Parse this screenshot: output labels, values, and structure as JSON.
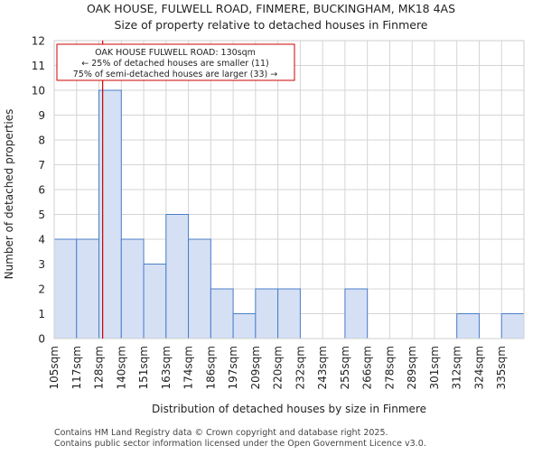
{
  "chart_data": {
    "type": "bar",
    "title": "OAK HOUSE, FULWELL ROAD, FINMERE, BUCKINGHAM, MK18 4AS",
    "subtitle": "Size of property relative to detached houses in Finmere",
    "xlabel": "Distribution of detached houses by size in Finmere",
    "ylabel": "Number of detached properties",
    "categories": [
      "105sqm",
      "117sqm",
      "128sqm",
      "140sqm",
      "151sqm",
      "163sqm",
      "174sqm",
      "186sqm",
      "197sqm",
      "209sqm",
      "220sqm",
      "232sqm",
      "243sqm",
      "255sqm",
      "266sqm",
      "278sqm",
      "289sqm",
      "301sqm",
      "312sqm",
      "324sqm",
      "335sqm"
    ],
    "values": [
      4,
      4,
      10,
      4,
      3,
      5,
      4,
      2,
      1,
      2,
      2,
      0,
      0,
      2,
      0,
      0,
      0,
      0,
      1,
      0,
      1
    ],
    "ylim": [
      0,
      12
    ],
    "yticks": [
      0,
      1,
      2,
      3,
      4,
      5,
      6,
      7,
      8,
      9,
      10,
      11,
      12
    ],
    "grid": true,
    "marker_value_sqm": 130,
    "bar_color": "#d6e0f5",
    "bar_edge_color": "#4a7ec9",
    "marker_color": "#cc0000",
    "annotation": {
      "line1": "OAK HOUSE FULWELL ROAD: 130sqm",
      "line2": "← 25% of detached houses are smaller (11)",
      "line3": "75% of semi-detached houses are larger (33) →"
    }
  },
  "footer": {
    "line1": "Contains HM Land Registry data © Crown copyright and database right 2025.",
    "line2": "Contains public sector information licensed under the Open Government Licence v3.0."
  }
}
